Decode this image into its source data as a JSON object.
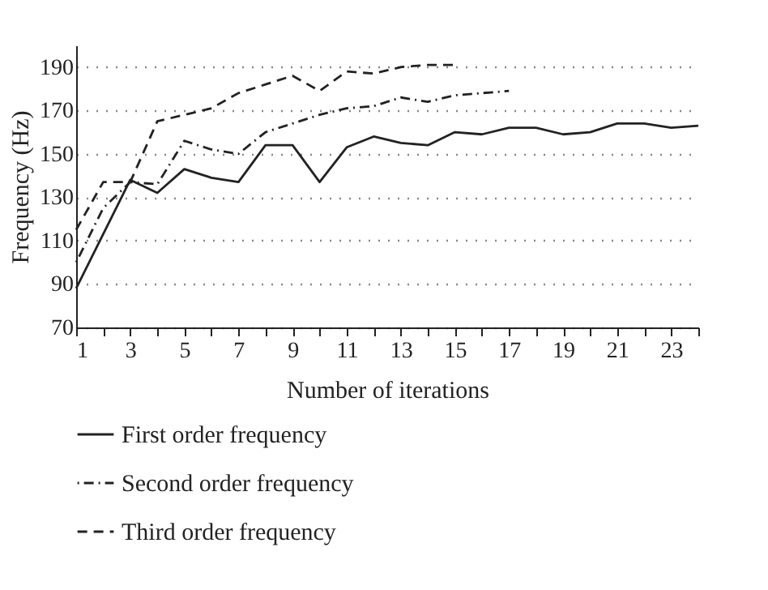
{
  "chart_data": {
    "type": "line",
    "xlabel": "Number of iterations",
    "ylabel": "Frequency (Hz)",
    "xlim": [
      1,
      24
    ],
    "ylim": [
      70,
      200
    ],
    "xticks": [
      1,
      {
        "value": 2,
        "label": null
      },
      3,
      {
        "value": 4,
        "label": null
      },
      5,
      {
        "value": 6,
        "label": null
      },
      7,
      {
        "value": 8,
        "label": null
      },
      9,
      {
        "value": 10,
        "label": null
      },
      11,
      {
        "value": 12,
        "label": null
      },
      13,
      {
        "value": 14,
        "label": null
      },
      15,
      {
        "value": 16,
        "label": null
      },
      17,
      {
        "value": 18,
        "label": null
      },
      19,
      {
        "value": 20,
        "label": null
      },
      21,
      {
        "value": 22,
        "label": null
      },
      23,
      {
        "value": 24,
        "label": null
      }
    ],
    "yticks": [
      70,
      90,
      110,
      130,
      150,
      170,
      190
    ],
    "grid": "y",
    "legend": "bottom",
    "marker": "none",
    "series": [
      {
        "name": "First order frequency",
        "color": "#222222",
        "line_style": "solid",
        "x": [
          1,
          2,
          3,
          4,
          5,
          6,
          7,
          8,
          9,
          10,
          11,
          12,
          13,
          14,
          15,
          16,
          17,
          18,
          19,
          20,
          21,
          22,
          23,
          24
        ],
        "values": [
          88,
          113,
          138,
          132,
          143,
          139,
          137,
          154,
          154,
          137,
          153,
          158,
          155,
          154,
          160,
          159,
          162,
          162,
          159,
          160,
          164,
          164,
          162,
          163
        ]
      },
      {
        "name": "Second order frequency",
        "color": "#222222",
        "line_style": "dashdot",
        "x": [
          1,
          2,
          3,
          4,
          5,
          6,
          7,
          8,
          9,
          10,
          11,
          12,
          13,
          14,
          15,
          16,
          17
        ],
        "values": [
          100,
          125,
          137,
          136,
          156,
          152,
          150,
          160,
          164,
          168,
          171,
          172,
          176,
          174,
          177,
          178,
          179
        ]
      },
      {
        "name": "Third order frequency",
        "color": "#222222",
        "line_style": "dashed",
        "x": [
          1,
          2,
          3,
          4,
          5,
          6,
          7,
          8,
          9,
          10,
          11,
          12,
          13,
          14,
          15
        ],
        "values": [
          115,
          137,
          137,
          165,
          168,
          171,
          178,
          182,
          186,
          179,
          188,
          187,
          190,
          191,
          191
        ]
      }
    ]
  }
}
